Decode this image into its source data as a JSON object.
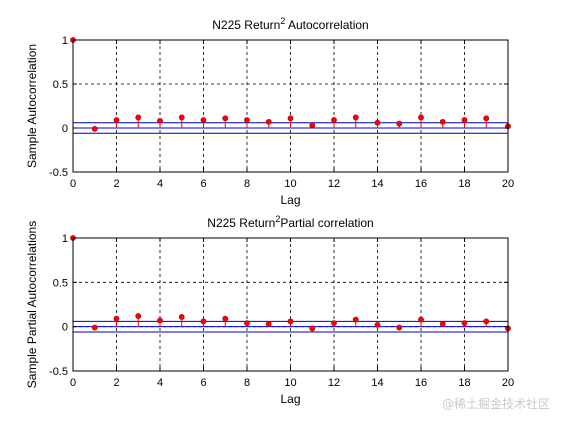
{
  "chart_data": [
    {
      "type": "stem",
      "title": "N225 Return² Autocorrelation",
      "xlabel": "Lag",
      "ylabel": "Sample Autocorrelation",
      "xlim": [
        0,
        20
      ],
      "ylim": [
        -0.5,
        1
      ],
      "xticks": [
        0,
        2,
        4,
        6,
        8,
        10,
        12,
        14,
        16,
        18,
        20
      ],
      "yticks": [
        -0.5,
        0,
        0.5,
        1
      ],
      "grid": true,
      "confidence_bounds": [
        0.06,
        -0.06
      ],
      "series": [
        {
          "x": [
            0,
            1,
            2,
            3,
            4,
            5,
            6,
            7,
            8,
            9,
            10,
            11,
            12,
            13,
            14,
            15,
            16,
            17,
            18,
            19,
            20
          ],
          "values": [
            1.0,
            -0.01,
            0.09,
            0.12,
            0.08,
            0.12,
            0.09,
            0.11,
            0.09,
            0.07,
            0.11,
            0.03,
            0.09,
            0.12,
            0.06,
            0.05,
            0.12,
            0.07,
            0.09,
            0.11,
            0.02
          ]
        }
      ]
    },
    {
      "type": "stem",
      "title": "N225 Return²Partial correlation",
      "xlabel": "Lag",
      "ylabel": "Sample Partial Autocorrelations",
      "xlim": [
        0,
        20
      ],
      "ylim": [
        -0.5,
        1
      ],
      "xticks": [
        0,
        2,
        4,
        6,
        8,
        10,
        12,
        14,
        16,
        18,
        20
      ],
      "yticks": [
        -0.5,
        0,
        0.5,
        1
      ],
      "grid": true,
      "confidence_bounds": [
        0.06,
        -0.06
      ],
      "series": [
        {
          "x": [
            0,
            1,
            2,
            3,
            4,
            5,
            6,
            7,
            8,
            9,
            10,
            11,
            12,
            13,
            14,
            15,
            16,
            17,
            18,
            19,
            20
          ],
          "values": [
            1.0,
            -0.01,
            0.09,
            0.12,
            0.07,
            0.11,
            0.06,
            0.09,
            0.04,
            0.03,
            0.06,
            -0.02,
            0.04,
            0.08,
            0.02,
            -0.01,
            0.08,
            0.03,
            0.04,
            0.06,
            -0.02
          ]
        }
      ]
    }
  ],
  "colors": {
    "stem": "#ff0000",
    "marker": "#ff0000",
    "bounds": "#0000aa",
    "zero_line": "#0000ff",
    "grid": "#000000"
  },
  "watermark": "@稀土掘金技术社区"
}
